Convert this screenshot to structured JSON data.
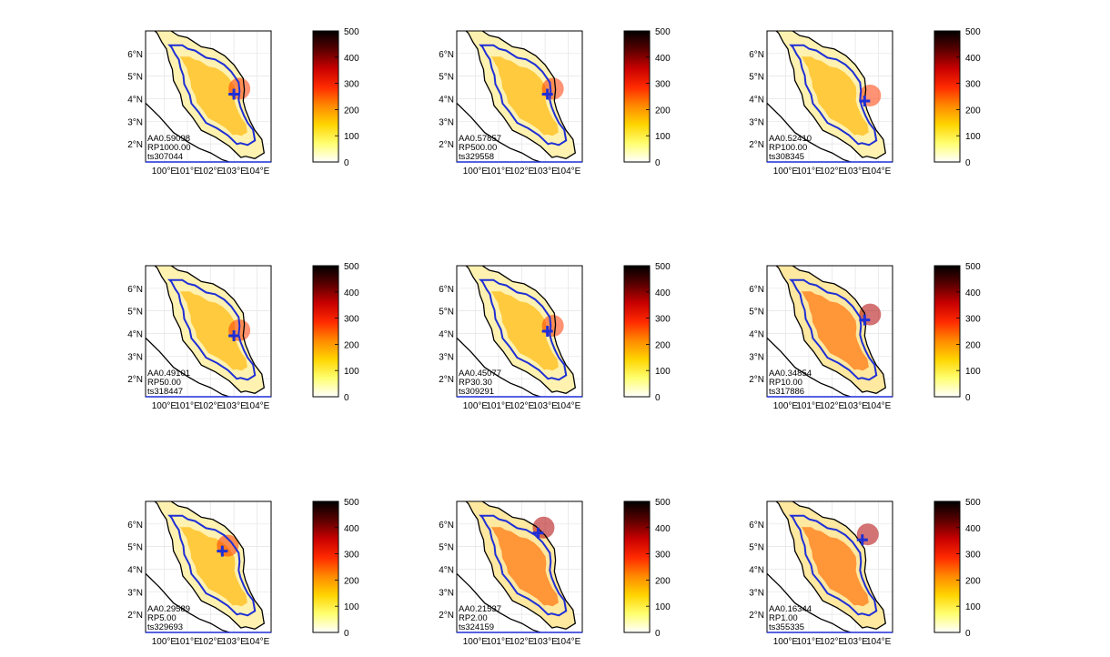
{
  "colorbar": {
    "ticks": [
      "500",
      "400",
      "300",
      "200",
      "100",
      "0"
    ],
    "scale_min": 0,
    "scale_max": 500,
    "colors": [
      "#ffffff",
      "#ffff70",
      "#ffd400",
      "#ff8a00",
      "#ff2a00",
      "#c80000",
      "#5a0000",
      "#000000"
    ]
  },
  "axes": {
    "lat_labels": [
      "6°N",
      "5°N",
      "4°N",
      "3°N",
      "2°N"
    ],
    "lon_labels": [
      "100°E",
      "101°E",
      "102°E",
      "103°E",
      "104°E"
    ]
  },
  "colors": {
    "contour": "#1f2fd6",
    "coast": "#000000"
  },
  "panels": [
    {
      "aa": "AA0.59098",
      "rp": "RP1000.00",
      "ts": "ts307044",
      "intensity": 0.55,
      "marker": [
        103.0,
        4.2
      ]
    },
    {
      "aa": "AA0.57857",
      "rp": "RP500.00",
      "ts": "ts329558",
      "intensity": 0.52,
      "marker": [
        103.1,
        4.2
      ]
    },
    {
      "aa": "AA0.52410",
      "rp": "RP100.00",
      "ts": "ts308345",
      "intensity": 0.5,
      "marker": [
        103.4,
        3.9
      ]
    },
    {
      "aa": "AA0.49101",
      "rp": "RP50.00",
      "ts": "ts318447",
      "intensity": 0.45,
      "marker": [
        103.0,
        3.9
      ]
    },
    {
      "aa": "AA0.45077",
      "rp": "RP30.30",
      "ts": "ts309291",
      "intensity": 0.45,
      "marker": [
        103.1,
        4.1
      ]
    },
    {
      "aa": "AA0.34854",
      "rp": "RP10.00",
      "ts": "ts317886",
      "intensity": 0.8,
      "marker": [
        103.4,
        4.6
      ]
    },
    {
      "aa": "AA0.29589",
      "rp": "RP5.00",
      "ts": "ts329693",
      "intensity": 0.4,
      "marker": [
        102.5,
        4.8
      ]
    },
    {
      "aa": "AA0.21537",
      "rp": "RP2.00",
      "ts": "ts324159",
      "intensity": 0.9,
      "marker": [
        102.7,
        5.6
      ]
    },
    {
      "aa": "AA0.16344",
      "rp": "RP1.00",
      "ts": "ts355335",
      "intensity": 0.85,
      "marker": [
        103.3,
        5.3
      ]
    }
  ]
}
